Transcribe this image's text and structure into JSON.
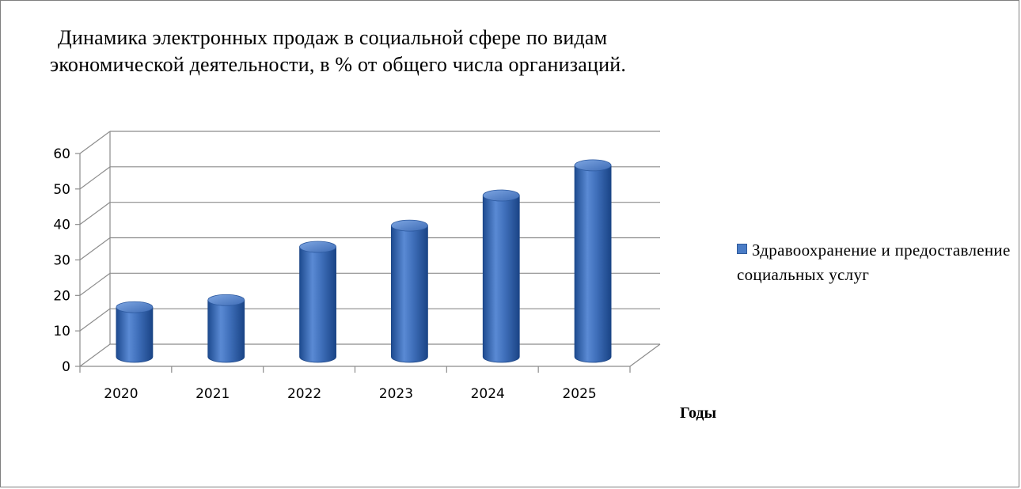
{
  "chart_data": {
    "type": "bar",
    "title_line1": "Динамика электронных продаж в социальной сфере по видам",
    "title_line2": "экономической деятельности, в % от общего числа организаций.",
    "categories": [
      "2020",
      "2021",
      "2022",
      "2023",
      "2024",
      "2025"
    ],
    "series": [
      {
        "name": "Здравоохранение и предоставление социальных услуг",
        "values": [
          14,
          16,
          31,
          37,
          45.5,
          54
        ]
      }
    ],
    "xlabel": "Годы",
    "ylabel": "",
    "ylim": [
      0,
      60
    ],
    "yticks": [
      "0",
      "10",
      "20",
      "30",
      "40",
      "50",
      "60"
    ],
    "grid": true,
    "three_d": true,
    "bar_shape": "cylinder",
    "legend_position": "right",
    "colors": {
      "bar": "#4a7cc6",
      "bar_dark": "#1f4f96",
      "bar_light": "#8fb3e8",
      "grid": "#8c8c8c",
      "axis": "#7f7f7f"
    }
  }
}
